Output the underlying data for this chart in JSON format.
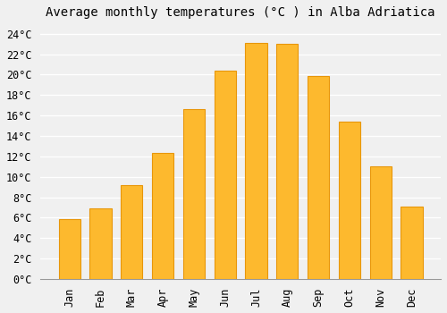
{
  "title": "Average monthly temperatures (°C ) in Alba Adriatica",
  "months": [
    "Jan",
    "Feb",
    "Mar",
    "Apr",
    "May",
    "Jun",
    "Jul",
    "Aug",
    "Sep",
    "Oct",
    "Nov",
    "Dec"
  ],
  "values": [
    5.9,
    6.9,
    9.2,
    12.3,
    16.6,
    20.4,
    23.1,
    23.0,
    19.9,
    15.4,
    11.0,
    7.1
  ],
  "bar_color": "#FDB92E",
  "bar_edge_color": "#E8960A",
  "background_color": "#F0F0F0",
  "grid_color": "#FFFFFF",
  "ylim": [
    0,
    25
  ],
  "ytick_step": 2,
  "title_fontsize": 10,
  "tick_fontsize": 8.5,
  "font_family": "monospace"
}
